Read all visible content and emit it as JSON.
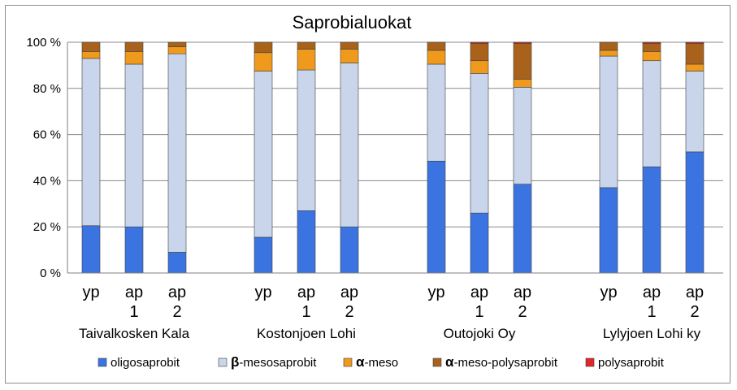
{
  "chart_data": {
    "type": "bar",
    "stacked": "percent",
    "title": "Saprobialuokat",
    "xlabel": "",
    "ylabel": "",
    "ylim": [
      0,
      100
    ],
    "yticks": [
      "0 %",
      "20 %",
      "40 %",
      "60 %",
      "80 %",
      "100 %"
    ],
    "grid": true,
    "legend_position": "bottom",
    "groups": [
      "Taivalkosken Kala",
      "Kostonjoen Lohi",
      "Outojoki Oy",
      "Lylyjoen Lohi ky"
    ],
    "categories": [
      [
        "yp",
        ""
      ],
      [
        "ap",
        "1"
      ],
      [
        "ap",
        "2"
      ],
      [
        "yp",
        ""
      ],
      [
        "ap",
        "1"
      ],
      [
        "ap",
        "2"
      ],
      [
        "yp",
        ""
      ],
      [
        "ap",
        "1"
      ],
      [
        "ap",
        "2"
      ],
      [
        "yp",
        ""
      ],
      [
        "ap",
        "1"
      ],
      [
        "ap",
        "2"
      ]
    ],
    "series": [
      {
        "name": "oligosaprobit",
        "prefix": "",
        "color": "#3b74e0",
        "values": [
          20.5,
          20,
          9,
          15.5,
          27,
          20,
          48.5,
          26,
          38.5,
          37,
          46,
          52.5
        ]
      },
      {
        "name": "-mesosaprobit",
        "prefix": "β",
        "color": "#c9d5ea",
        "values": [
          72.5,
          70.5,
          86,
          72,
          61,
          71,
          42,
          60.5,
          42,
          57,
          46,
          35
        ]
      },
      {
        "name": "-meso",
        "prefix": "α",
        "color": "#ef9a1c",
        "values": [
          3,
          5.5,
          3,
          8,
          9,
          6,
          6,
          5.5,
          3.5,
          2.5,
          4,
          3
        ]
      },
      {
        "name": "-meso-polysaprobit",
        "prefix": "α",
        "color": "#a9621c",
        "values": [
          4,
          4,
          2,
          4.5,
          3,
          3,
          3.5,
          7.5,
          15.5,
          3.5,
          3.5,
          9
        ]
      },
      {
        "name": "polysaprobit",
        "prefix": "",
        "color": "#e3262a",
        "values": [
          0,
          0,
          0,
          0,
          0,
          0,
          0,
          0.5,
          0.5,
          0,
          0.5,
          0.5
        ]
      }
    ]
  }
}
